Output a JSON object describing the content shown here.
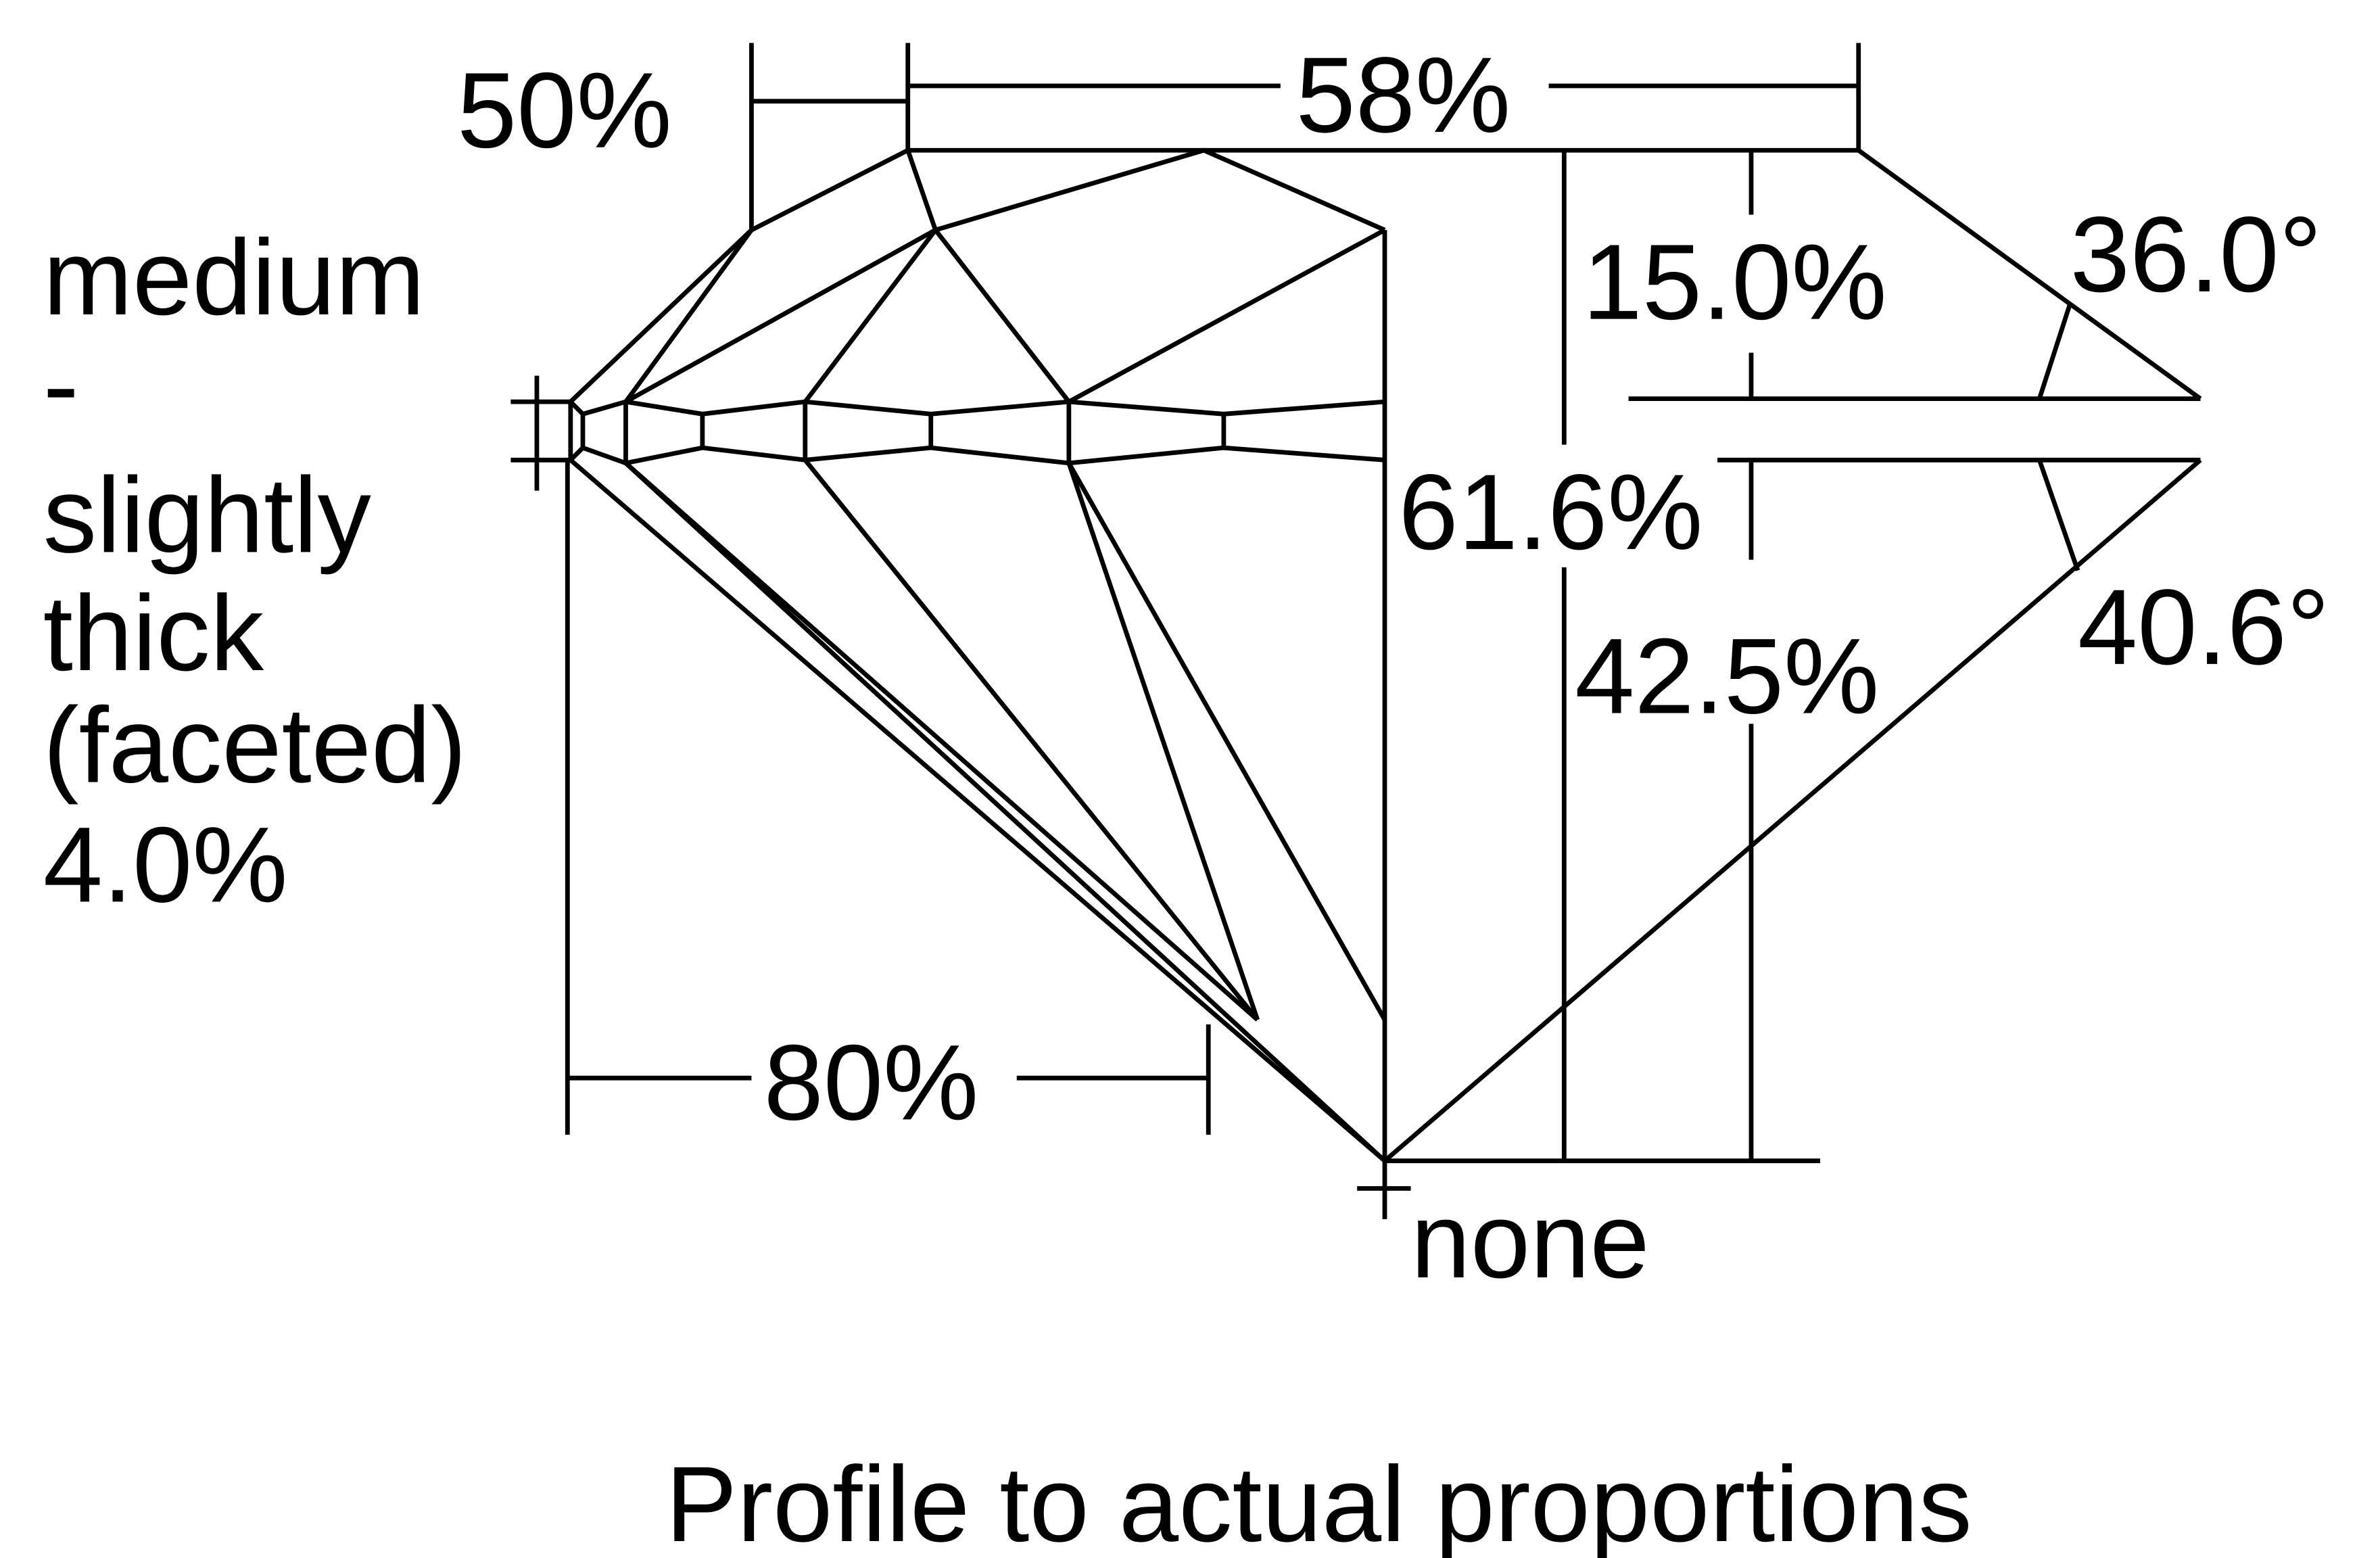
{
  "labels": {
    "crown_height_pct": "50%",
    "table_pct": "58%",
    "girdle_lines": [
      "medium",
      "-",
      "slightly",
      "thick",
      "(faceted)",
      "4.0%"
    ],
    "crown_height": "15.0%",
    "crown_angle": "36.0°",
    "total_depth": "61.6%",
    "pavilion_depth": "42.5%",
    "pavilion_angle": "40.6°",
    "lower_half_pct": "80%",
    "culet": "none"
  },
  "caption": "Profile to actual proportions",
  "colors": {
    "line": "#000000",
    "background": "#ffffff"
  }
}
